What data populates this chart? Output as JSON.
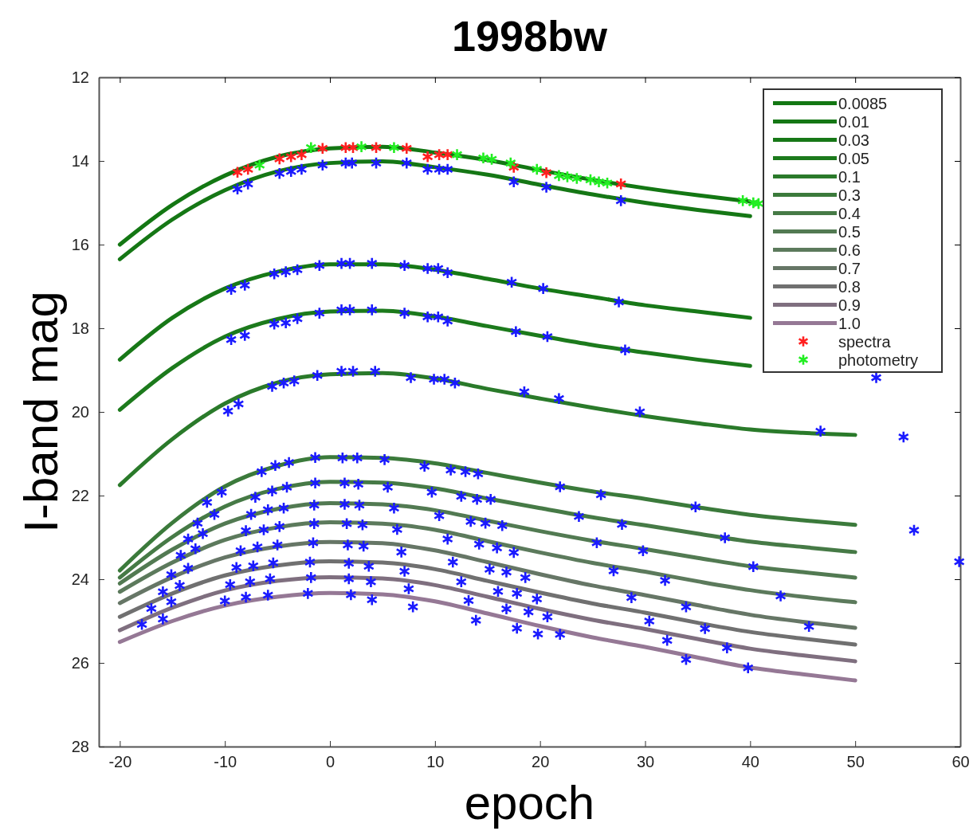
{
  "chart_data": {
    "type": "line",
    "title": "1998bw",
    "xlabel": "epoch",
    "ylabel": "I-band mag",
    "xlim": [
      -22,
      60
    ],
    "ylim": [
      28,
      12
    ],
    "xticks": [
      -20,
      -10,
      0,
      10,
      20,
      30,
      40,
      50,
      60
    ],
    "yticks": [
      12,
      14,
      16,
      18,
      20,
      22,
      24,
      26,
      28
    ],
    "grid": false,
    "legend": "top right",
    "line_style": "solid",
    "x": [
      -20,
      -15,
      -10,
      -5,
      0,
      5,
      10,
      15,
      20,
      25,
      30,
      35,
      40,
      45,
      50
    ],
    "series": [
      {
        "name": "0.0085",
        "color": "#137713",
        "values": [
          16.0,
          15.05,
          14.35,
          13.9,
          13.7,
          13.66,
          13.8,
          13.98,
          14.22,
          14.45,
          14.65,
          14.82,
          14.97,
          null,
          null
        ]
      },
      {
        "name": "0.01",
        "color": "#157715",
        "values": [
          16.35,
          15.4,
          14.7,
          14.25,
          14.05,
          14.01,
          14.15,
          14.33,
          14.57,
          14.8,
          15.0,
          15.17,
          15.32,
          null,
          null
        ]
      },
      {
        "name": "0.03",
        "color": "#177817",
        "values": [
          18.75,
          17.75,
          17.05,
          16.65,
          16.47,
          16.47,
          16.6,
          16.82,
          17.05,
          17.25,
          17.45,
          17.6,
          17.75,
          null,
          null
        ]
      },
      {
        "name": "0.05",
        "color": "#1c7a1c",
        "values": [
          19.95,
          18.95,
          18.2,
          17.78,
          17.6,
          17.58,
          17.72,
          17.95,
          18.18,
          18.4,
          18.58,
          18.75,
          18.9,
          null,
          null
        ]
      },
      {
        "name": "0.1",
        "color": "#2a7a2a",
        "values": [
          21.75,
          20.65,
          19.8,
          19.3,
          19.1,
          19.07,
          19.2,
          19.45,
          19.68,
          19.9,
          20.1,
          20.27,
          20.42,
          20.5,
          20.55
        ]
      },
      {
        "name": "0.3",
        "color": "#3b7a3b",
        "values": [
          23.79,
          22.65,
          21.78,
          21.29,
          21.08,
          21.1,
          21.23,
          21.46,
          21.69,
          21.9,
          22.08,
          22.28,
          22.46,
          22.59,
          22.7
        ]
      },
      {
        "name": "0.4",
        "color": "#467a46",
        "values": [
          23.96,
          22.99,
          22.26,
          21.84,
          21.67,
          21.69,
          21.83,
          22.07,
          22.3,
          22.52,
          22.71,
          22.91,
          23.1,
          23.23,
          23.35
        ]
      },
      {
        "name": "0.5",
        "color": "#527a52",
        "values": [
          24.1,
          23.29,
          22.67,
          22.32,
          22.18,
          22.21,
          22.35,
          22.6,
          22.85,
          23.08,
          23.28,
          23.49,
          23.69,
          23.83,
          23.96
        ]
      },
      {
        "name": "0.6",
        "color": "#5c7a5c",
        "values": [
          24.3,
          23.6,
          23.06,
          22.76,
          22.64,
          22.67,
          22.82,
          23.09,
          23.36,
          23.61,
          23.82,
          24.05,
          24.26,
          24.42,
          24.55
        ]
      },
      {
        "name": "0.7",
        "color": "#667666",
        "values": [
          24.57,
          23.95,
          23.48,
          23.22,
          23.11,
          23.14,
          23.31,
          23.59,
          23.88,
          24.15,
          24.38,
          24.62,
          24.85,
          25.02,
          25.16
        ]
      },
      {
        "name": "0.8",
        "color": "#707070",
        "values": [
          24.9,
          24.34,
          23.91,
          23.67,
          23.57,
          23.6,
          23.76,
          24.04,
          24.32,
          24.58,
          24.8,
          25.04,
          25.26,
          25.42,
          25.56
        ]
      },
      {
        "name": "0.9",
        "color": "#7f6f7f",
        "values": [
          25.22,
          24.68,
          24.27,
          24.04,
          23.95,
          23.98,
          24.14,
          24.42,
          24.71,
          24.97,
          25.19,
          25.43,
          25.66,
          25.82,
          25.96
        ]
      },
      {
        "name": "1.0",
        "color": "#957895",
        "values": [
          25.5,
          25.0,
          24.63,
          24.42,
          24.33,
          24.36,
          24.53,
          24.82,
          25.12,
          25.39,
          25.62,
          25.87,
          26.11,
          26.27,
          26.42
        ]
      },
      {
        "type": "scatter",
        "marker": "cross",
        "color": "#1a1aff",
        "x": [
          -8.8,
          -7.8,
          -4.8,
          -3.7,
          -2.7,
          -0.7,
          1.5,
          2.1,
          4.4,
          7.3,
          9.3,
          10.4,
          11.2,
          17.5,
          20.6,
          27.7,
          -9.4,
          -8.1,
          -5.3,
          -4.2,
          -3.1,
          -1.0,
          1.1,
          1.9,
          4.0,
          7.1,
          9.3,
          10.3,
          11.2,
          17.3,
          20.3,
          27.5,
          -9.4,
          -8.1,
          -5.3,
          -4.2,
          -3.1,
          -1.0,
          1.1,
          1.9,
          4.0,
          7.1,
          9.3,
          10.3,
          11.2,
          17.7,
          20.7,
          28.1,
          52.0,
          -9.7,
          -8.7,
          -5.5,
          -4.4,
          -3.4,
          -1.2,
          1.1,
          2.2,
          4.3,
          7.7,
          9.9,
          10.9,
          11.9,
          18.5,
          21.8,
          29.5,
          46.7,
          54.6,
          -10.3,
          -11.7,
          -11.0,
          -12.6,
          -12.1,
          -13.5,
          -12.8,
          -14.2,
          -13.5,
          -15.1,
          -14.3,
          -15.9,
          -15.1,
          -17.0,
          -15.9,
          -17.9,
          -6.5,
          -5.2,
          -3.9,
          -1.4,
          1.2,
          2.6,
          5.2,
          9.0,
          11.5,
          12.9,
          14.1,
          21.9,
          25.8,
          34.8,
          55.6,
          59.9,
          -7.1,
          -5.5,
          -4.1,
          -1.4,
          1.4,
          2.7,
          5.5,
          9.7,
          12.5,
          14.0,
          15.3,
          23.7,
          27.8,
          37.6,
          -7.5,
          -5.9,
          -4.4,
          -1.5,
          1.4,
          2.8,
          6.1,
          10.4,
          13.4,
          14.8,
          16.4,
          25.4,
          29.8,
          40.3,
          -8.0,
          -6.3,
          -4.8,
          -1.5,
          1.6,
          3.1,
          6.4,
          11.2,
          14.2,
          15.9,
          17.5,
          27.0,
          31.9,
          42.9,
          -8.5,
          -6.9,
          -5.0,
          -1.6,
          1.7,
          3.2,
          6.8,
          11.7,
          15.2,
          16.8,
          18.6,
          28.7,
          33.9,
          45.6,
          -8.9,
          -7.3,
          -5.4,
          -1.9,
          1.8,
          3.7,
          7.1,
          12.5,
          16.0,
          17.8,
          19.7,
          30.4,
          35.7,
          -9.5,
          -7.6,
          -5.7,
          -1.8,
          1.8,
          3.9,
          7.5,
          13.2,
          16.8,
          18.9,
          20.7,
          32.1,
          37.8,
          -10.0,
          -8.0,
          -5.9,
          -2.1,
          2.0,
          4.0,
          7.9,
          13.9,
          17.8,
          19.8,
          21.9,
          33.9,
          39.8
        ],
        "values": [
          14.67,
          14.55,
          14.3,
          14.25,
          14.2,
          14.1,
          14.05,
          14.05,
          14.05,
          14.05,
          14.2,
          14.2,
          14.2,
          14.5,
          14.63,
          14.95,
          17.07,
          16.97,
          16.7,
          16.65,
          16.6,
          16.5,
          16.45,
          16.45,
          16.45,
          16.5,
          16.57,
          16.57,
          16.67,
          16.9,
          17.05,
          17.37,
          18.27,
          18.17,
          17.9,
          17.87,
          17.77,
          17.64,
          17.56,
          17.56,
          17.56,
          17.64,
          17.73,
          17.73,
          17.83,
          18.08,
          18.2,
          18.52,
          19.18,
          19.98,
          19.81,
          19.39,
          19.31,
          19.26,
          19.13,
          19.03,
          19.03,
          19.03,
          19.18,
          19.22,
          19.22,
          19.31,
          19.52,
          19.68,
          20.0,
          20.46,
          20.6,
          21.92,
          22.16,
          22.45,
          22.66,
          22.91,
          23.04,
          23.27,
          23.43,
          23.74,
          23.89,
          24.15,
          24.3,
          24.54,
          24.7,
          24.95,
          25.08,
          21.43,
          21.28,
          21.21,
          21.09,
          21.1,
          21.1,
          21.14,
          21.3,
          21.39,
          21.43,
          21.48,
          21.79,
          21.98,
          22.27,
          22.83,
          23.58,
          22.04,
          21.89,
          21.8,
          21.7,
          21.7,
          21.73,
          21.8,
          21.92,
          22.02,
          22.09,
          22.09,
          22.5,
          22.69,
          23.01,
          22.45,
          22.34,
          22.3,
          22.23,
          22.21,
          22.23,
          22.3,
          22.48,
          22.62,
          22.66,
          22.72,
          23.13,
          23.32,
          23.7,
          22.84,
          22.82,
          22.74,
          22.67,
          22.67,
          22.7,
          22.81,
          23.04,
          23.16,
          23.25,
          23.36,
          23.8,
          24.03,
          24.4,
          23.32,
          23.23,
          23.18,
          23.13,
          23.18,
          23.21,
          23.35,
          23.59,
          23.76,
          23.83,
          23.96,
          24.44,
          24.66,
          25.13,
          23.72,
          23.68,
          23.61,
          23.59,
          23.62,
          23.69,
          23.81,
          24.06,
          24.29,
          24.34,
          24.47,
          25.0,
          25.18,
          24.13,
          24.06,
          23.99,
          23.96,
          23.99,
          24.06,
          24.23,
          24.51,
          24.71,
          24.78,
          24.9,
          25.46,
          25.64,
          24.52,
          24.43,
          24.38,
          24.34,
          24.37,
          24.49,
          24.66,
          24.98,
          25.17,
          25.31,
          25.32,
          25.92,
          26.12
        ]
      },
      {
        "type": "scatter",
        "marker": "cross",
        "name": "spectra",
        "color": "#ff2020",
        "x": [
          -8.8,
          -7.8,
          -4.8,
          -3.7,
          -2.7,
          -0.7,
          1.5,
          2.2,
          4.4,
          7.3,
          9.3,
          10.4,
          11.2,
          17.5,
          20.6,
          27.7
        ],
        "values": [
          14.27,
          14.2,
          13.95,
          13.9,
          13.85,
          13.7,
          13.68,
          13.68,
          13.68,
          13.7,
          13.9,
          13.85,
          13.85,
          14.15,
          14.28,
          14.55
        ]
      },
      {
        "type": "scatter",
        "marker": "cross",
        "name": "photometry",
        "color": "#22ee22",
        "x": [
          -6.7,
          -1.8,
          3.0,
          6.1,
          12.1,
          14.6,
          15.4,
          17.2,
          19.7,
          21.8,
          22.6,
          23.5,
          24.8,
          25.6,
          26.4,
          39.3,
          40.3,
          40.8
        ],
        "values": [
          14.1,
          13.68,
          13.66,
          13.68,
          13.85,
          13.93,
          13.96,
          14.05,
          14.2,
          14.35,
          14.38,
          14.42,
          14.45,
          14.5,
          14.53,
          14.95,
          15.0,
          15.02
        ]
      }
    ]
  }
}
